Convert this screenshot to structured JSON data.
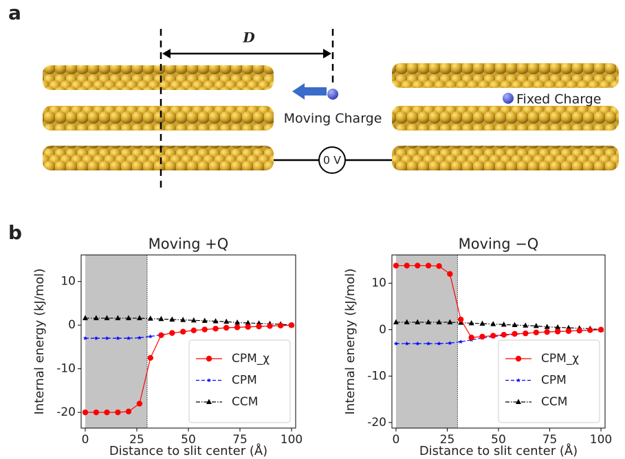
{
  "diagram": {
    "label": "a",
    "distance_label": "D",
    "moving_charge": "Moving Charge",
    "fixed_charge": "Fixed Charge",
    "voltage": "0 V"
  },
  "panel_label": "b",
  "chart_data": [
    {
      "type": "line",
      "title": "Moving +Q",
      "xlabel": "Distance to slit center (Å)",
      "ylabel": "Internal energy (kJ/mol)",
      "x": [
        0,
        5.3,
        10.5,
        15.8,
        21,
        26.3,
        31.6,
        36.8,
        42.1,
        47.4,
        52.6,
        57.9,
        63.2,
        68.4,
        73.7,
        78.9,
        84.2,
        89.5,
        94.7,
        100
      ],
      "xlim": [
        -2,
        102
      ],
      "xticks": [
        0,
        25,
        50,
        75,
        100
      ],
      "ylim": [
        -23.6,
        16.1
      ],
      "yticks": [
        -20,
        -10,
        0,
        10
      ],
      "shaded_xrange": [
        0,
        30
      ],
      "legend": "lower right",
      "series": [
        {
          "name": "CPM_χ",
          "color": "#ff0000",
          "marker": "circle",
          "dash": "solid",
          "values": [
            -20,
            -20,
            -20,
            -20,
            -19.8,
            -18,
            -7.5,
            -2.3,
            -1.8,
            -1.5,
            -1.2,
            -1,
            -0.8,
            -0.6,
            -0.5,
            -0.4,
            -0.3,
            -0.2,
            -0.1,
            0
          ]
        },
        {
          "name": "CPM",
          "color": "#0000ff",
          "marker": "star",
          "dash": "dashed",
          "values": [
            -3,
            -3,
            -3,
            -3,
            -3,
            -2.9,
            -2.6,
            -2.2,
            -1.8,
            -1.5,
            -1.2,
            -1,
            -0.8,
            -0.6,
            -0.5,
            -0.4,
            -0.3,
            -0.2,
            -0.1,
            0
          ]
        },
        {
          "name": "CCM",
          "color": "#000000",
          "marker": "triangle",
          "dash": "dashdot",
          "values": [
            1.6,
            1.6,
            1.6,
            1.6,
            1.6,
            1.6,
            1.5,
            1.4,
            1.3,
            1.2,
            1.1,
            1.0,
            0.9,
            0.8,
            0.6,
            0.5,
            0.4,
            0.3,
            0.2,
            0
          ]
        }
      ]
    },
    {
      "type": "line",
      "title": "Moving −Q",
      "xlabel": "Distance to slit center (Å)",
      "ylabel": "Internal energy (kJ/mol)",
      "x": [
        0,
        5.3,
        10.5,
        15.8,
        21,
        26.3,
        31.6,
        36.8,
        42.1,
        47.4,
        52.6,
        57.9,
        63.2,
        68.4,
        73.7,
        78.9,
        84.2,
        89.5,
        94.7,
        100
      ],
      "xlim": [
        -2,
        102
      ],
      "xticks": [
        0,
        25,
        50,
        75,
        100
      ],
      "ylim": [
        -21.2,
        16.1
      ],
      "yticks": [
        -20,
        -10,
        0,
        10
      ],
      "shaded_xrange": [
        0,
        30
      ],
      "legend": "lower right",
      "series": [
        {
          "name": "CPM_χ",
          "color": "#ff0000",
          "marker": "circle",
          "dash": "solid",
          "values": [
            13.8,
            13.8,
            13.8,
            13.8,
            13.7,
            12,
            2.2,
            -1.7,
            -1.5,
            -1.3,
            -1.1,
            -0.9,
            -0.8,
            -0.6,
            -0.5,
            -0.4,
            -0.3,
            -0.2,
            -0.1,
            0
          ]
        },
        {
          "name": "CPM",
          "color": "#0000ff",
          "marker": "star",
          "dash": "dashed",
          "values": [
            -3,
            -3,
            -3,
            -3,
            -3,
            -2.9,
            -2.6,
            -2.2,
            -1.8,
            -1.5,
            -1.2,
            -1,
            -0.8,
            -0.6,
            -0.5,
            -0.4,
            -0.3,
            -0.2,
            -0.1,
            0
          ]
        },
        {
          "name": "CCM",
          "color": "#000000",
          "marker": "triangle",
          "dash": "dashdot",
          "values": [
            1.6,
            1.6,
            1.6,
            1.6,
            1.6,
            1.6,
            1.5,
            1.4,
            1.3,
            1.2,
            1.1,
            1.0,
            0.9,
            0.8,
            0.6,
            0.5,
            0.4,
            0.3,
            0.2,
            0
          ]
        }
      ]
    }
  ]
}
